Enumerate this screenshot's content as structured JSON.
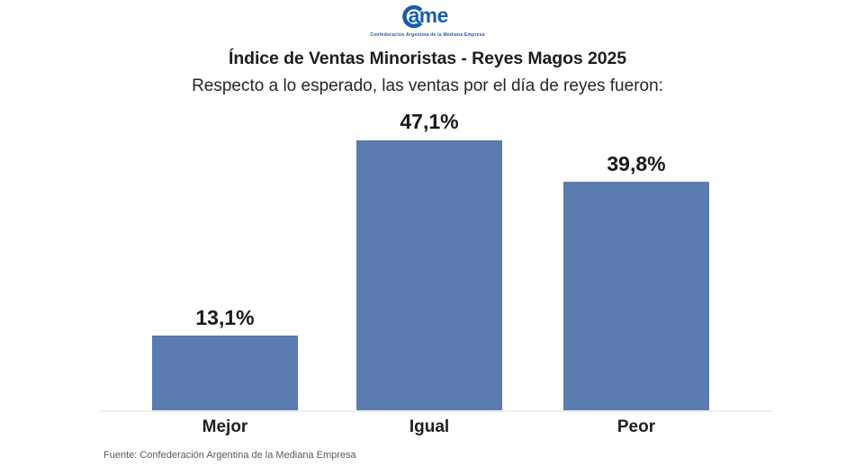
{
  "brand": {
    "logo_name": "CAME",
    "logo_letters": "ame",
    "logo_color": "#1a5cab",
    "tagline": "Confederación Argentina de la Mediana Empresa"
  },
  "chart_data": {
    "type": "bar",
    "title": "Índice de Ventas Minoristas - Reyes Magos 2025",
    "subtitle": "Respecto a lo esperado, las ventas por el día de reyes fueron:",
    "categories": [
      "Mejor",
      "Igual",
      "Peor"
    ],
    "values": [
      13.1,
      47.1,
      39.8
    ],
    "value_labels": [
      "13,1%",
      "47,1%",
      "39,8%"
    ],
    "unit": "%",
    "ylim": [
      0,
      50
    ],
    "bar_color": "#5a7cae",
    "grid": false,
    "legend": "none",
    "xlabel": "",
    "ylabel": ""
  },
  "footer": {
    "source": "Fuente: Confederación Argentina de la Mediana Empresa"
  }
}
